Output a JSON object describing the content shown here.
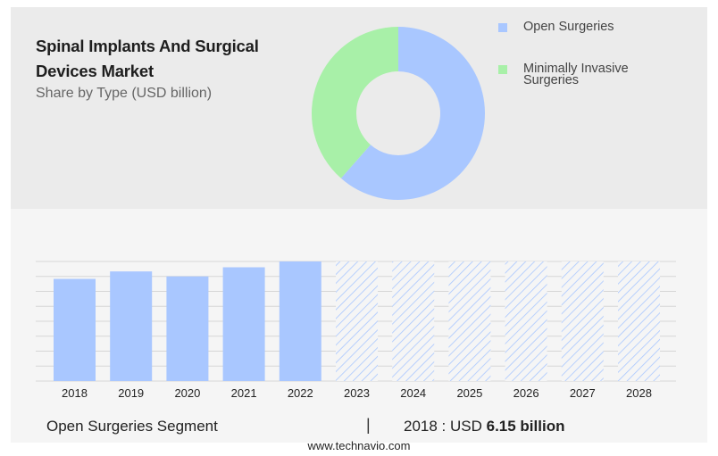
{
  "header": {
    "title_line1": "Spinal Implants And Surgical",
    "title_line2": "Devices Market",
    "subtitle": "Share by Type (USD billion)"
  },
  "legend": [
    {
      "label_lines": [
        "Open Surgeries"
      ],
      "color": "#a9c7ff"
    },
    {
      "label_lines": [
        "Minimally Invasive",
        "Surgeries"
      ],
      "color": "#a8f0a8"
    }
  ],
  "footer": {
    "segment": "Open Surgeries Segment",
    "separator": "|",
    "value_prefix": "2018 : USD ",
    "value_bold": "6.15 billion"
  },
  "source": "www.technavio.com",
  "chart_data": [
    {
      "type": "pie",
      "variant": "donut",
      "categories": [
        "Open Surgeries",
        "Minimally Invasive Surgeries"
      ],
      "values": [
        61.5,
        38.5
      ],
      "colors": [
        "#a9c7ff",
        "#a8f0a8"
      ]
    },
    {
      "type": "bar",
      "categories": [
        "2018",
        "2019",
        "2020",
        "2021",
        "2022",
        "2023",
        "2024",
        "2025",
        "2026",
        "2027",
        "2028"
      ],
      "series": [
        {
          "values": [
            6.15,
            6.6,
            6.3,
            6.85,
            7.2,
            null,
            null,
            null,
            null,
            null,
            null
          ]
        }
      ],
      "forecast_categories": [
        "2023",
        "2024",
        "2025",
        "2026",
        "2027",
        "2028"
      ],
      "bar_color": "#a9c7ff",
      "forecast_pattern": "diagonal-hatch",
      "ylim": [
        0,
        7.2
      ],
      "grid": true,
      "y_tick_labels_shown": false
    }
  ]
}
